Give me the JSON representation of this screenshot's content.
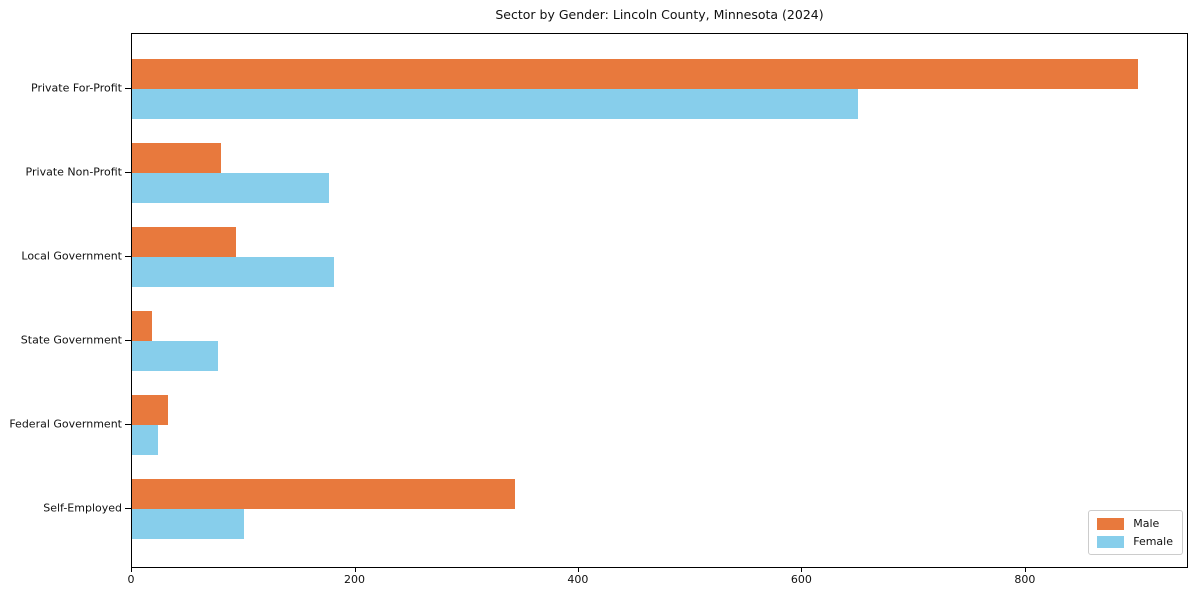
{
  "chart_data": {
    "type": "bar",
    "orientation": "horizontal",
    "title": "Sector by Gender: Lincoln County, Minnesota (2024)",
    "categories": [
      "Private For-Profit",
      "Private Non-Profit",
      "Local Government",
      "State Government",
      "Federal Government",
      "Self-Employed"
    ],
    "series": [
      {
        "name": "Male",
        "color": "#e8793d",
        "values": [
          900,
          80,
          93,
          18,
          32,
          343
        ]
      },
      {
        "name": "Female",
        "color": "#87ceeb",
        "values": [
          650,
          176,
          181,
          77,
          23,
          100
        ]
      }
    ],
    "xlabel": "",
    "ylabel": "",
    "xlim": [
      0,
      946
    ],
    "x_ticks": [
      0,
      200,
      400,
      600,
      800
    ],
    "legend_position": "lower right",
    "grid": false,
    "colors": {
      "male": "#e8793d",
      "female": "#87ceeb",
      "spine": "#000000",
      "text": "#111111",
      "legend_border": "#cccccc",
      "background": "#ffffff"
    }
  }
}
